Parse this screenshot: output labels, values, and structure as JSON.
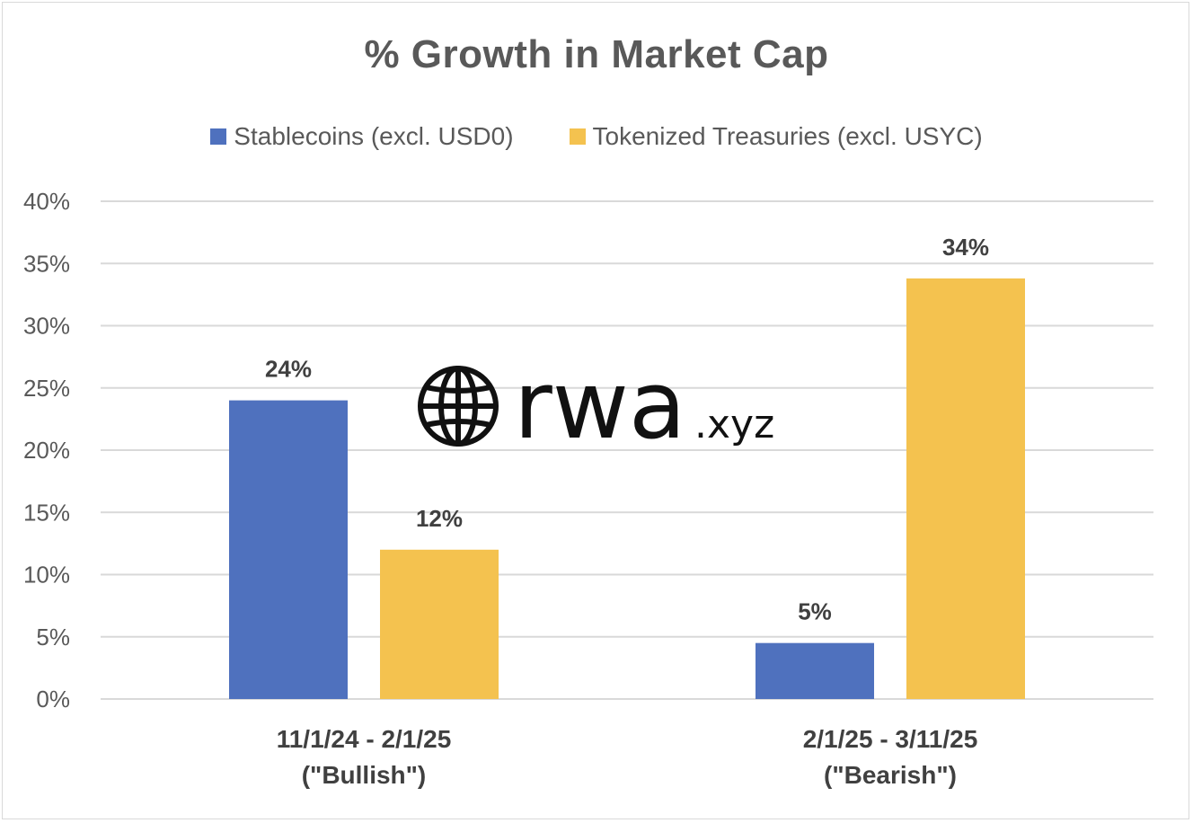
{
  "chart_data": {
    "type": "bar",
    "title": "% Growth in Market Cap",
    "categories": [
      [
        "11/1/24 - 2/1/25",
        "(\"Bullish\")"
      ],
      [
        "2/1/25 - 3/11/25",
        "(\"Bearish\")"
      ]
    ],
    "series": [
      {
        "name": "Stablecoins (excl. USD0)",
        "color": "#4f71be",
        "values": [
          24,
          4.5
        ],
        "labels": [
          "24%",
          "5%"
        ]
      },
      {
        "name": "Tokenized Treasuries (excl. USYC)",
        "color": "#f4c24f",
        "values": [
          12,
          33.8
        ],
        "labels": [
          "12%",
          "34%"
        ]
      }
    ],
    "yticks": [
      "0%",
      "5%",
      "10%",
      "15%",
      "20%",
      "25%",
      "30%",
      "35%",
      "40%"
    ],
    "ylim": [
      0,
      40
    ],
    "grid": true,
    "legend": "top-center"
  },
  "watermark": {
    "text": "rwa",
    "suffix": ".xyz",
    "icon": "globe-icon"
  }
}
